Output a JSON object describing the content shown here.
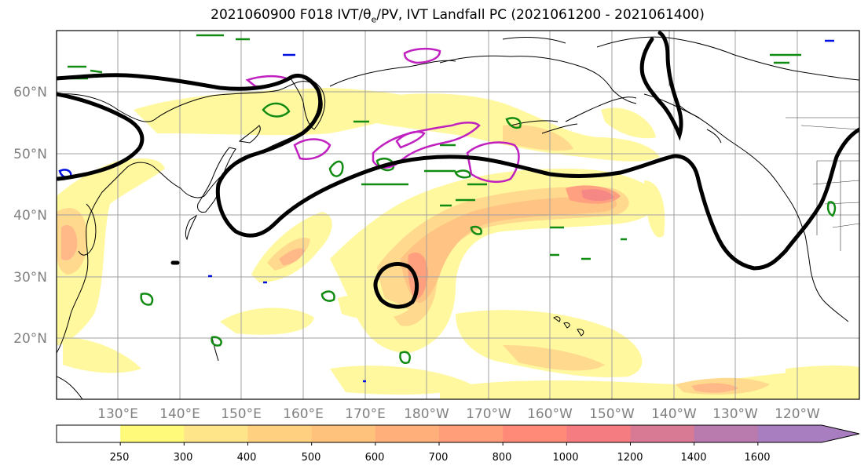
{
  "title": {
    "main": "2021060900 F018 IVT/θ",
    "sub": "e",
    "rest": "/PV, IVT Landfall PC (2021061200 - 2021061400)"
  },
  "map": {
    "lat_labels": [
      "60°N",
      "50°N",
      "40°N",
      "30°N",
      "20°N"
    ],
    "lon_labels": [
      "130°E",
      "140°E",
      "150°E",
      "160°E",
      "170°E",
      "180°W",
      "170°W",
      "160°W",
      "150°W",
      "140°W",
      "130°W",
      "120°W"
    ]
  },
  "colorbar": {
    "ticks": [
      "250",
      "300",
      "400",
      "500",
      "600",
      "700",
      "800",
      "1000",
      "1200",
      "1400",
      "1600"
    ],
    "colors": [
      "#ffffff",
      "#fffa7a",
      "#ffe58a",
      "#ffd07f",
      "#ffc27d",
      "#ffb07a",
      "#ff9e78",
      "#ff8a78",
      "#f57c80",
      "#d97a95",
      "#b97aae",
      "#a87ec0"
    ]
  }
}
